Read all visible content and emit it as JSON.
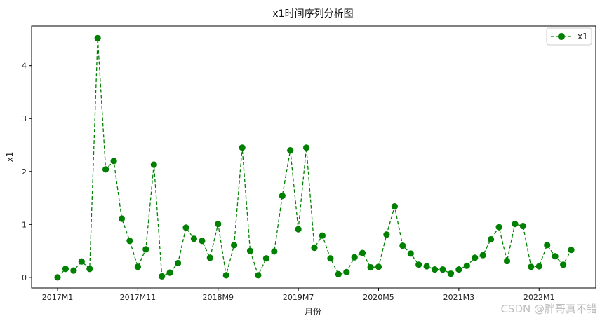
{
  "chart_data": {
    "type": "line",
    "title": "x1时间序列分析图",
    "xlabel": "月份",
    "ylabel": "x1",
    "categories": [
      "2017M1",
      "2017M2",
      "2017M3",
      "2017M4",
      "2017M5",
      "2017M6",
      "2017M7",
      "2017M8",
      "2017M9",
      "2017M10",
      "2017M11",
      "2017M12",
      "2018M1",
      "2018M2",
      "2018M3",
      "2018M4",
      "2018M5",
      "2018M6",
      "2018M7",
      "2018M8",
      "2018M9",
      "2018M10",
      "2018M11",
      "2018M12",
      "2019M1",
      "2019M2",
      "2019M3",
      "2019M4",
      "2019M5",
      "2019M6",
      "2019M7",
      "2019M8",
      "2019M9",
      "2019M10",
      "2019M11",
      "2019M12",
      "2020M1",
      "2020M2",
      "2020M3",
      "2020M4",
      "2020M5",
      "2020M6",
      "2020M7",
      "2020M8",
      "2020M9",
      "2020M10",
      "2020M11",
      "2020M12",
      "2021M1",
      "2021M2",
      "2021M3",
      "2021M4",
      "2021M5",
      "2021M6",
      "2021M7",
      "2021M8",
      "2021M9",
      "2021M10",
      "2021M11",
      "2021M12",
      "2022M1",
      "2022M2",
      "2022M3",
      "2022M4",
      "2022M5"
    ],
    "series": [
      {
        "name": "x1",
        "color": "#008000",
        "line_style": "dashed",
        "marker": "circle",
        "values": [
          0.0,
          0.16,
          0.13,
          0.3,
          0.16,
          4.52,
          2.04,
          2.2,
          1.11,
          0.69,
          0.2,
          0.53,
          2.13,
          0.02,
          0.09,
          0.27,
          0.94,
          0.73,
          0.69,
          0.37,
          1.01,
          0.04,
          0.61,
          2.45,
          0.5,
          0.04,
          0.36,
          0.49,
          1.54,
          2.4,
          0.91,
          2.45,
          0.56,
          0.79,
          0.36,
          0.06,
          0.1,
          0.38,
          0.46,
          0.19,
          0.2,
          0.81,
          1.34,
          0.6,
          0.45,
          0.24,
          0.21,
          0.15,
          0.15,
          0.07,
          0.15,
          0.22,
          0.37,
          0.42,
          0.72,
          0.95,
          0.31,
          1.01,
          0.97,
          0.2,
          0.21,
          0.61,
          0.4,
          0.24,
          0.52
        ]
      }
    ],
    "xticks": [
      "2017M1",
      "2017M11",
      "2018M9",
      "2019M7",
      "2020M5",
      "2021M3",
      "2022M1"
    ],
    "yticks": [
      0,
      1,
      2,
      3,
      4
    ],
    "ylim": [
      -0.2,
      4.75
    ],
    "grid": false,
    "legend": {
      "position": "top-right",
      "entries": [
        "x1"
      ]
    }
  },
  "watermark": "CSDN @胖哥真不错"
}
